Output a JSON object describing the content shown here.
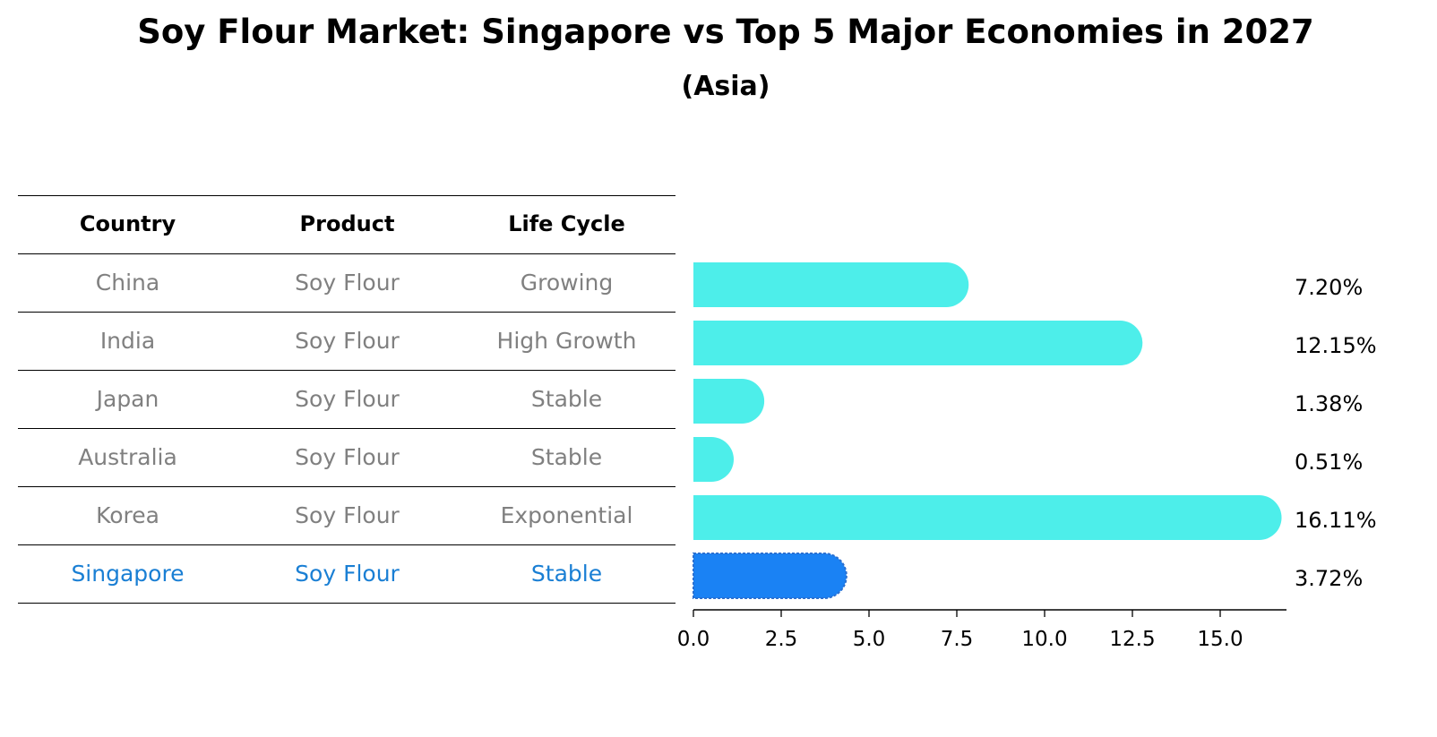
{
  "title": "Soy Flour Market: Singapore vs Top 5 Major Economies in 2027",
  "subtitle": "(Asia)",
  "table": {
    "headers": [
      "Country",
      "Product",
      "Life Cycle"
    ],
    "rows": [
      {
        "country": "China",
        "product": "Soy Flour",
        "life_cycle": "Growing"
      },
      {
        "country": "India",
        "product": "Soy Flour",
        "life_cycle": "High Growth"
      },
      {
        "country": "Japan",
        "product": "Soy Flour",
        "life_cycle": "Stable"
      },
      {
        "country": "Australia",
        "product": "Soy Flour",
        "life_cycle": "Stable"
      },
      {
        "country": "Korea",
        "product": "Soy Flour",
        "life_cycle": "Exponential"
      },
      {
        "country": "Singapore",
        "product": "Soy Flour",
        "life_cycle": "Stable"
      }
    ]
  },
  "colors": {
    "bar": "#4deeea",
    "highlight": "#1a82f4",
    "highlight_text": "#1a7fd4",
    "muted_text": "#808080"
  },
  "chart_data": {
    "type": "bar",
    "orientation": "horizontal",
    "categories": [
      "China",
      "India",
      "Japan",
      "Australia",
      "Korea",
      "Singapore"
    ],
    "values": [
      7.2,
      12.15,
      1.38,
      0.51,
      16.11,
      3.72
    ],
    "value_labels": [
      "7.20%",
      "12.15%",
      "1.38%",
      "0.51%",
      "16.11%",
      "3.72%"
    ],
    "highlight": "Singapore",
    "xlim": [
      0,
      17
    ],
    "xticks": [
      "0.0",
      "2.5",
      "5.0",
      "7.5",
      "10.0",
      "12.5",
      "15.0"
    ],
    "xtick_values": [
      0,
      2.5,
      5,
      7.5,
      10,
      12.5,
      15
    ],
    "grid": false
  }
}
